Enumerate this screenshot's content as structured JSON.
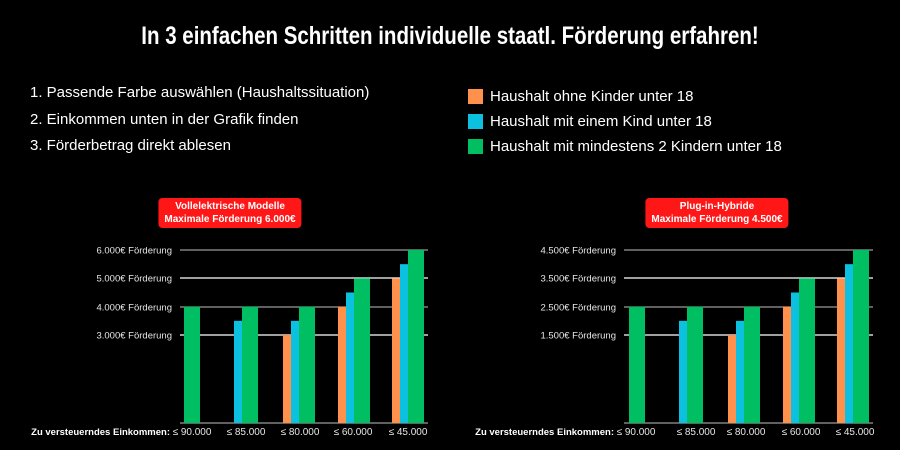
{
  "header": {
    "title": "In 3 einfachen Schritten individuelle staatl. Förderung erfahren!"
  },
  "steps": [
    "1. Passende Farbe auswählen (Haushaltssituation)",
    "2. Einkommen unten in der Grafik finden",
    "3. Förderbetrag direkt ablesen"
  ],
  "legend": [
    {
      "label": "Haushalt ohne Kinder unter 18",
      "color": "#FF914D"
    },
    {
      "label": "Haushalt mit einem Kind unter 18",
      "color": "#0CC0DF"
    },
    {
      "label": "Haushalt mit mindestens 2 Kindern unter 18",
      "color": "#00BF63"
    }
  ],
  "chart_data": [
    {
      "type": "bar",
      "title": [
        "Vollelektrische Modelle",
        "Maximale Förderung 6.000€"
      ],
      "xlabel": "Zu versteuerndes Einkommen:",
      "categories": [
        "≤ 90.000",
        "≤ 85.000",
        "≤ 80.000",
        "≤ 60.000",
        "≤ 45.000"
      ],
      "yticks": [
        6000,
        5000,
        4000,
        3000
      ],
      "ytick_labels": [
        "6.000€ Förderung",
        "5.000€ Förderung",
        "4.000€ Förderung",
        "3.000€ Förderung"
      ],
      "series": [
        {
          "name": "Haushalt ohne Kinder unter 18",
          "color": "#FF914D",
          "values": [
            null,
            null,
            3000,
            4000,
            5000
          ]
        },
        {
          "name": "Haushalt mit einem Kind unter 18",
          "color": "#0CC0DF",
          "values": [
            null,
            3500,
            3500,
            4500,
            5500
          ]
        },
        {
          "name": "Haushalt mit mindestens 2 Kindern unter 18",
          "color": "#00BF63",
          "values": [
            4000,
            4000,
            4000,
            5000,
            6000
          ]
        }
      ],
      "grid": true
    },
    {
      "type": "bar",
      "title": [
        "Plug-in-Hybride",
        "Maximale Förderung 4.500€"
      ],
      "xlabel": "Zu versteuerndes Einkommen:",
      "categories": [
        "≤ 90.000",
        "≤ 85.000",
        "≤ 80.000",
        "≤ 60.000",
        "≤ 45.000"
      ],
      "yticks": [
        4500,
        3500,
        2500,
        1500
      ],
      "ytick_labels": [
        "4.500€ Förderung",
        "3.500€ Förderung",
        "2.500€ Förderung",
        "1.500€ Förderung"
      ],
      "series": [
        {
          "name": "Haushalt ohne Kinder unter 18",
          "color": "#FF914D",
          "values": [
            null,
            null,
            1500,
            2500,
            3500
          ]
        },
        {
          "name": "Haushalt mit einem Kind unter 18",
          "color": "#0CC0DF",
          "values": [
            null,
            2000,
            2000,
            3000,
            4000
          ]
        },
        {
          "name": "Haushalt mit mindestens 2 Kindern unter 18",
          "color": "#00BF63",
          "values": [
            2500,
            2500,
            2500,
            3500,
            4500
          ]
        }
      ],
      "grid": true
    }
  ]
}
